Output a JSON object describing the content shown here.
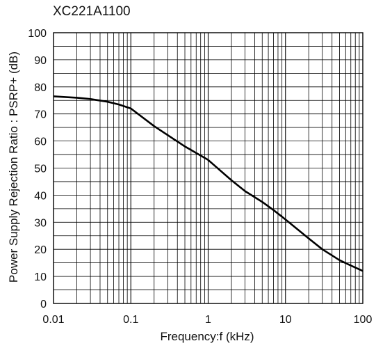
{
  "chart_data": {
    "type": "line",
    "title": "XC221A1100",
    "xlabel": "Frequency:f (kHz)",
    "ylabel": "Power Supply Rejection Ratio : PSRP+ (dB)",
    "xscale": "log",
    "xlim": [
      0.01,
      100
    ],
    "ylim": [
      0,
      100
    ],
    "grid": true,
    "x_ticks": [
      "0.01",
      "0.1",
      "1",
      "10",
      "100"
    ],
    "y_ticks": [
      "0",
      "10",
      "20",
      "30",
      "40",
      "50",
      "60",
      "70",
      "80",
      "90",
      "100"
    ],
    "series": [
      {
        "x": [
          0.01,
          0.02,
          0.03,
          0.05,
          0.07,
          0.1,
          0.2,
          0.5,
          1,
          2,
          3,
          5,
          7,
          10,
          20,
          30,
          50,
          70,
          100
        ],
        "y": [
          76.5,
          76,
          75.5,
          74.5,
          73.5,
          72,
          65.5,
          58,
          53,
          45.5,
          41.5,
          37.5,
          34.5,
          31,
          24,
          20,
          16,
          14,
          12
        ],
        "color": "#000000"
      }
    ]
  }
}
